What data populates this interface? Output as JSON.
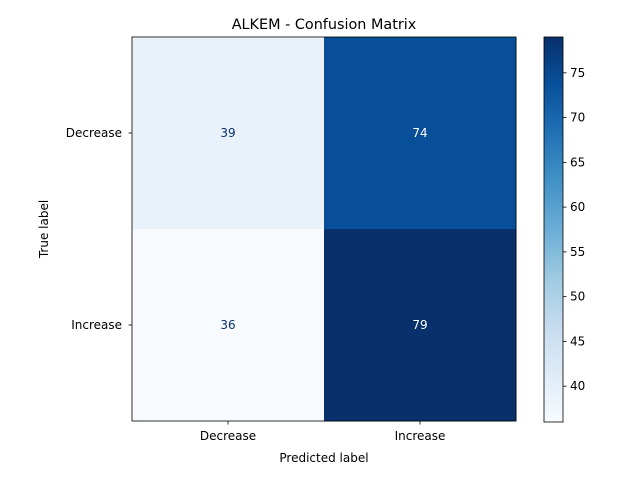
{
  "chart_data": {
    "type": "heatmap",
    "title": "ALKEM - Confusion Matrix",
    "xlabel": "Predicted label",
    "ylabel": "True label",
    "x_categories": [
      "Decrease",
      "Increase"
    ],
    "y_categories": [
      "Decrease",
      "Increase"
    ],
    "values": [
      [
        39,
        74
      ],
      [
        36,
        79
      ]
    ],
    "colormap": "Blues",
    "colorbar": {
      "min": 36,
      "max": 79,
      "ticks": [
        40,
        45,
        50,
        55,
        60,
        65,
        70,
        75
      ],
      "tick_labels": [
        "40",
        "45",
        "50",
        "55",
        "60",
        "65",
        "70",
        "75"
      ]
    },
    "grid": false,
    "cell_text_colors": {
      "light_bg": "#08306b",
      "dark_bg": "#ffffff"
    }
  }
}
